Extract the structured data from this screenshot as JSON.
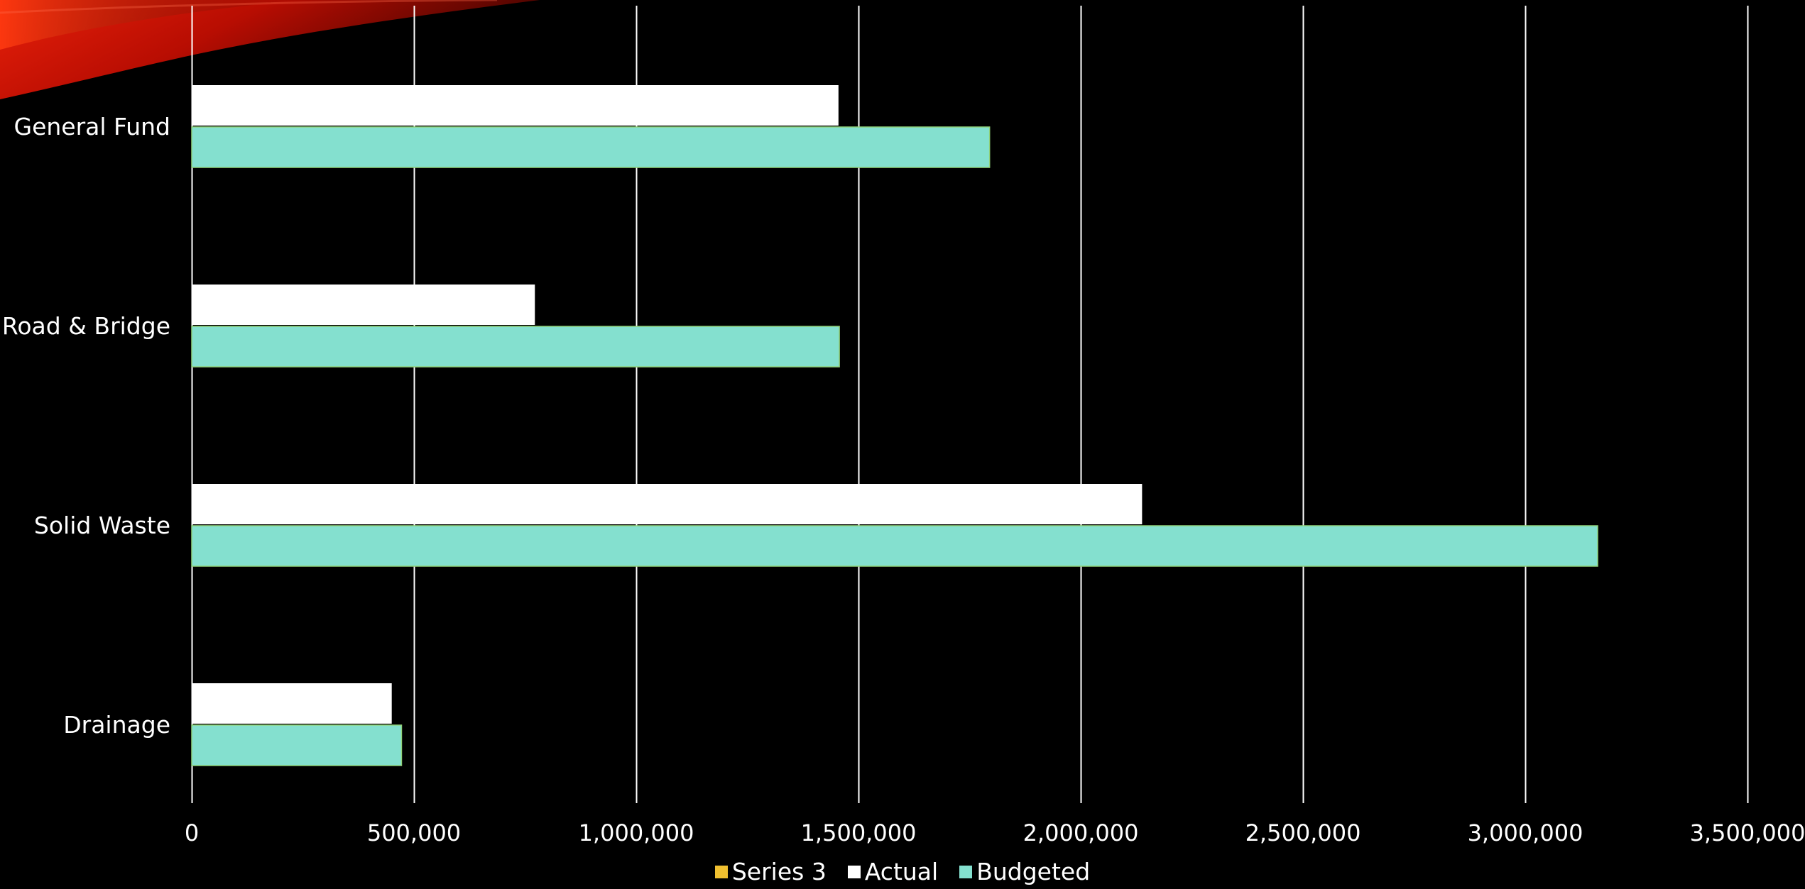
{
  "colors": {
    "background": "#000000",
    "gridline": "#ffffff",
    "axis_text": "#ffffff",
    "decoration_red": "#d11a06"
  },
  "chart_data": {
    "type": "bar",
    "orientation": "horizontal",
    "categories": [
      "General Fund",
      "Road & Bridge",
      "Solid Waste",
      "Drainage"
    ],
    "series": [
      {
        "name": "Series 3",
        "color": "#f0c030",
        "values": [
          0,
          0,
          0,
          0
        ]
      },
      {
        "name": "Actual",
        "color": "#ffffff",
        "values": [
          1455000,
          772000,
          2138000,
          450000
        ]
      },
      {
        "name": "Budgeted",
        "color": "#84e0cf",
        "values": [
          1795000,
          1457000,
          3163000,
          472000
        ]
      }
    ],
    "xlim": [
      0,
      3500000
    ],
    "x_ticks": [
      0,
      500000,
      1000000,
      1500000,
      2000000,
      2500000,
      3000000,
      3500000
    ],
    "x_tick_labels": [
      "0",
      "500,000",
      "1,000,000",
      "1,500,000",
      "2,000,000",
      "2,500,000",
      "3,000,000",
      "3,500,000"
    ],
    "grid": true,
    "legend": "bottom-center",
    "title": "",
    "xlabel": "",
    "ylabel": ""
  }
}
